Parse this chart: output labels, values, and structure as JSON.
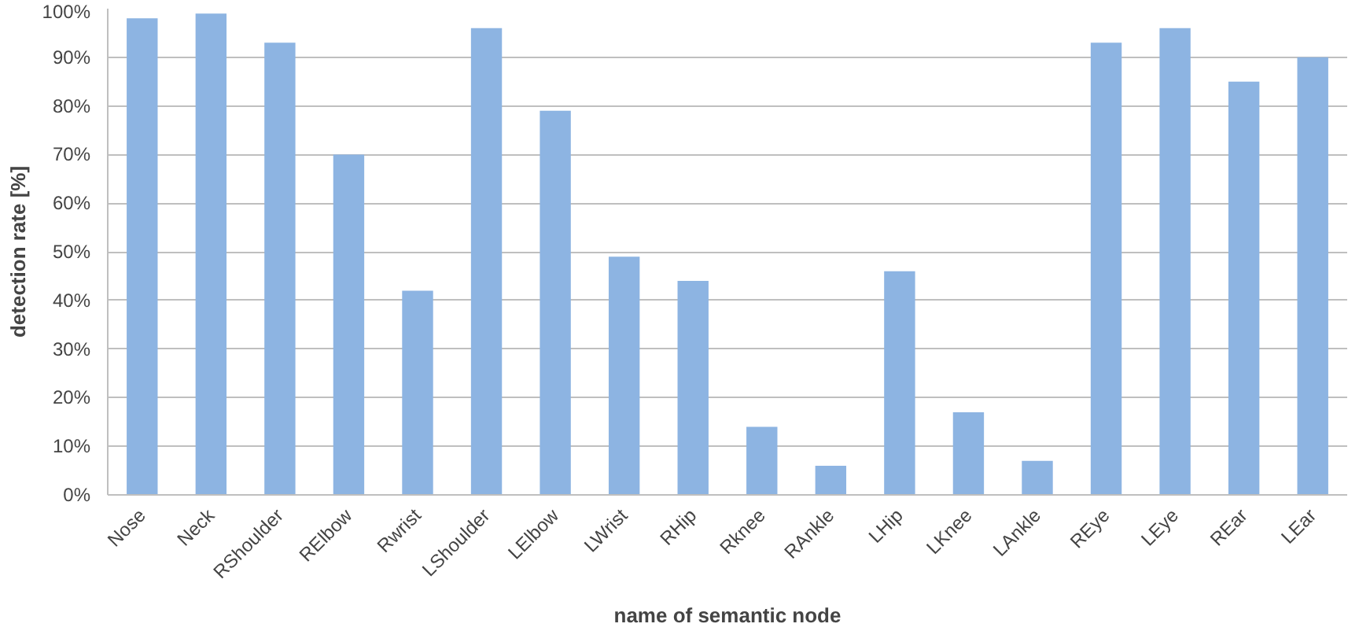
{
  "chart_data": {
    "type": "bar",
    "xlabel": "name of semantic node",
    "ylabel": "detection rate [%]",
    "categories": [
      "Nose",
      "Neck",
      "RShoulder",
      "RElbow",
      "Rwrist",
      "LShoulder",
      "LElbow",
      "LWrist",
      "RHip",
      "Rknee",
      "RAnkle",
      "LHip",
      "LKnee",
      "LAnkle",
      "REye",
      "LEye",
      "REar",
      "LEar"
    ],
    "values": [
      98,
      99,
      93,
      70,
      42,
      96,
      79,
      49,
      44,
      14,
      6,
      46,
      17,
      7,
      93,
      96,
      85,
      90
    ],
    "color": "#8db4e2",
    "ylim": [
      0,
      100
    ],
    "yticks": [
      {
        "value": 0,
        "label": "0%"
      },
      {
        "value": 10,
        "label": "10%"
      },
      {
        "value": 20,
        "label": "20%"
      },
      {
        "value": 30,
        "label": "30%"
      },
      {
        "value": 40,
        "label": "40%"
      },
      {
        "value": 50,
        "label": "50%"
      },
      {
        "value": 60,
        "label": "60%"
      },
      {
        "value": 70,
        "label": "70%"
      },
      {
        "value": 80,
        "label": "80%"
      },
      {
        "value": 90,
        "label": "90%"
      },
      {
        "value": 100,
        "label": "100%"
      }
    ],
    "grid": "y"
  }
}
